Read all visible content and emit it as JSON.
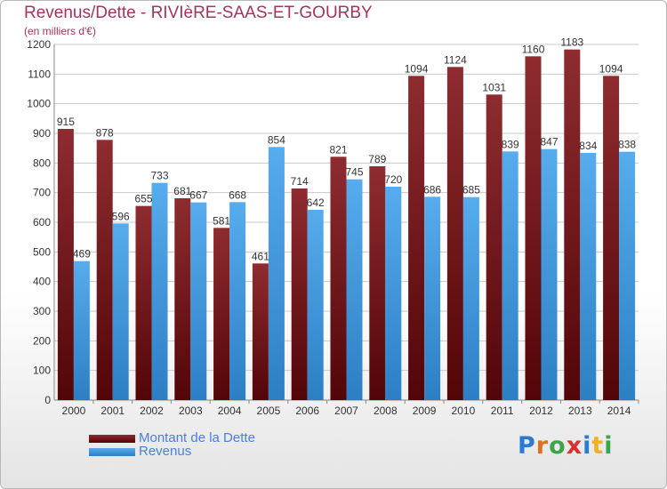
{
  "header": {
    "title": "Revenus/Dette - RIVIèRE-SAAS-ET-GOURBY",
    "subtitle": "(en milliers d'€)"
  },
  "chart_data": {
    "type": "bar",
    "categories": [
      "2000",
      "2001",
      "2002",
      "2003",
      "2004",
      "2005",
      "2006",
      "2007",
      "2008",
      "2009",
      "2010",
      "2011",
      "2012",
      "2013",
      "2014"
    ],
    "series": [
      {
        "name": "Montant de la Dette",
        "color": "#7a1f22",
        "values": [
          915,
          878,
          655,
          681,
          581,
          461,
          714,
          821,
          789,
          1094,
          1124,
          1031,
          1160,
          1183,
          1094
        ]
      },
      {
        "name": "Revenus",
        "color": "#4aa0e0",
        "values": [
          469,
          596,
          733,
          667,
          668,
          854,
          642,
          745,
          720,
          686,
          685,
          839,
          847,
          834,
          838
        ]
      }
    ],
    "ylim": [
      0,
      1200
    ],
    "yticks": [
      0,
      100,
      200,
      300,
      400,
      500,
      600,
      700,
      800,
      900,
      1000,
      1100,
      1200
    ],
    "grid": true,
    "legend": "bottom-left"
  },
  "logo": {
    "text": "Proxiti",
    "letters": [
      {
        "ch": "P",
        "color": "#2b7bd4"
      },
      {
        "ch": "r",
        "color": "#e0701a"
      },
      {
        "ch": "o",
        "color": "#3aa648"
      },
      {
        "ch": "x",
        "color": "#d93030"
      },
      {
        "ch": "i",
        "color": "#2b7bd4"
      },
      {
        "ch": "t",
        "color": "#f0b020"
      },
      {
        "ch": "i",
        "color": "#3aa648"
      }
    ]
  }
}
